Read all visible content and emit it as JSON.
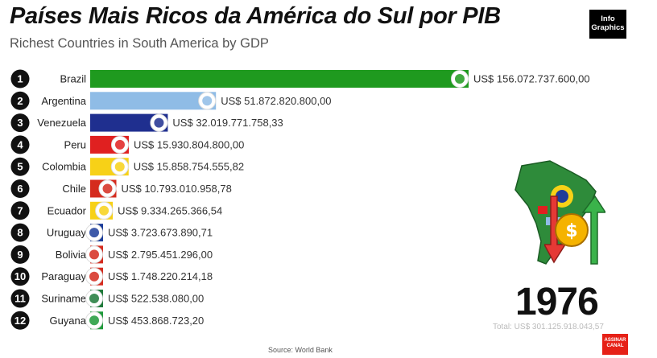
{
  "header": {
    "title": "Países Mais Ricos da América do Sul por PIB",
    "subtitle": "Richest Countries in South America by GDP"
  },
  "logo": {
    "line1": "Info",
    "line2": "Graphics"
  },
  "year": "1976",
  "total_label": "Total: US$ 301.125.918.043,57",
  "source": "Source: World Bank",
  "channel_badge": {
    "line1": "ASSINAR",
    "line2": "CANAL"
  },
  "chart_data": {
    "type": "bar",
    "orientation": "horizontal",
    "title": "Países Mais Ricos da América do Sul por PIB",
    "subtitle": "Richest Countries in South America by GDP",
    "categories": [
      "Brazil",
      "Argentina",
      "Venezuela",
      "Peru",
      "Colombia",
      "Chile",
      "Ecuador",
      "Uruguay",
      "Bolivia",
      "Paraguay",
      "Suriname",
      "Guyana"
    ],
    "ranks": [
      "1",
      "2",
      "3",
      "4",
      "5",
      "6",
      "7",
      "8",
      "9",
      "10",
      "11",
      "12"
    ],
    "values": [
      156072737600.0,
      51872820800.0,
      32019771758.33,
      15930804800.0,
      15858754555.82,
      10793010958.78,
      9334265366.54,
      3723673890.71,
      2795451296.0,
      1748220214.18,
      522538080.0,
      453868723.2
    ],
    "value_labels": [
      "US$ 156.072.737.600,00",
      "US$ 51.872.820.800,00",
      "US$ 32.019.771.758,33",
      "US$ 15.930.804.800,00",
      "US$ 15.858.754.555,82",
      "US$ 10.793.010.958,78",
      "US$ 9.334.265.366,54",
      "US$ 3.723.673.890,71",
      "US$ 2.795.451.296,00",
      "US$ 1.748.220.214,18",
      "US$ 522.538.080,00",
      "US$ 453.868.723,20"
    ],
    "colors": [
      "#1f9a1f",
      "#8fbce6",
      "#1f2f8f",
      "#e02020",
      "#f7d117",
      "#d52b1e",
      "#f7d117",
      "#1c3d9a",
      "#d52b1e",
      "#d52b1e",
      "#1f7a3a",
      "#1f9a3a"
    ],
    "xlim": [
      0,
      156072737600
    ],
    "grid": false,
    "legend": "none"
  }
}
